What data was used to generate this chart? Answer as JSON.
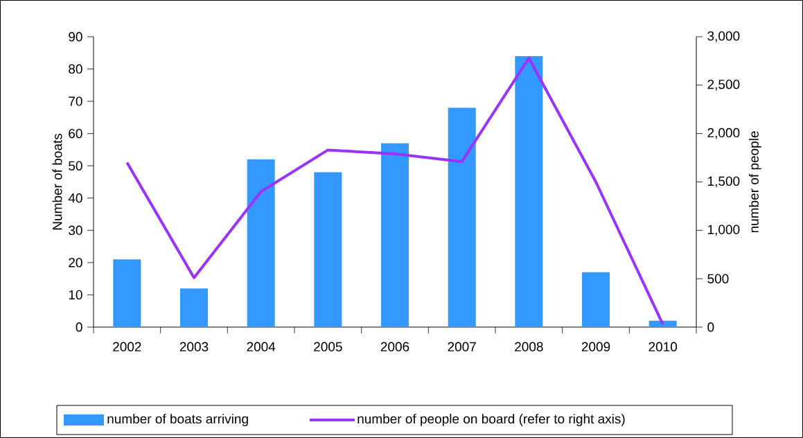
{
  "chart_data": {
    "type": "bar",
    "categories": [
      "2002",
      "2003",
      "2004",
      "2005",
      "2006",
      "2007",
      "2008",
      "2009",
      "2010"
    ],
    "ylabel": "Number of boats",
    "y2label": "number of people",
    "ylim": [
      0,
      90
    ],
    "yticks": [
      0,
      10,
      20,
      30,
      40,
      50,
      60,
      70,
      80,
      90
    ],
    "y2lim": [
      0,
      3000
    ],
    "y2ticks": [
      0,
      500,
      {
        "value": 1000,
        "label": "1,000"
      },
      {
        "value": 1500,
        "label": "1,500"
      },
      {
        "value": 2000,
        "label": "2,000"
      },
      {
        "value": 2500,
        "label": "2,500"
      },
      {
        "value": 3000,
        "label": "3,000"
      }
    ],
    "series": [
      {
        "name": "number of boats arriving",
        "color": "#3399ff",
        "values": [
          21,
          12,
          52,
          48,
          57,
          68,
          84,
          17,
          2
        ]
      },
      {
        "name": "number of people on board (refer to right axis)",
        "type": "line",
        "axis": "y2",
        "color": "#9933ff",
        "values": [
          1700,
          510,
          1400,
          1830,
          1790,
          1710,
          2780,
          1500,
          30
        ]
      }
    ],
    "legend": "bottom"
  }
}
